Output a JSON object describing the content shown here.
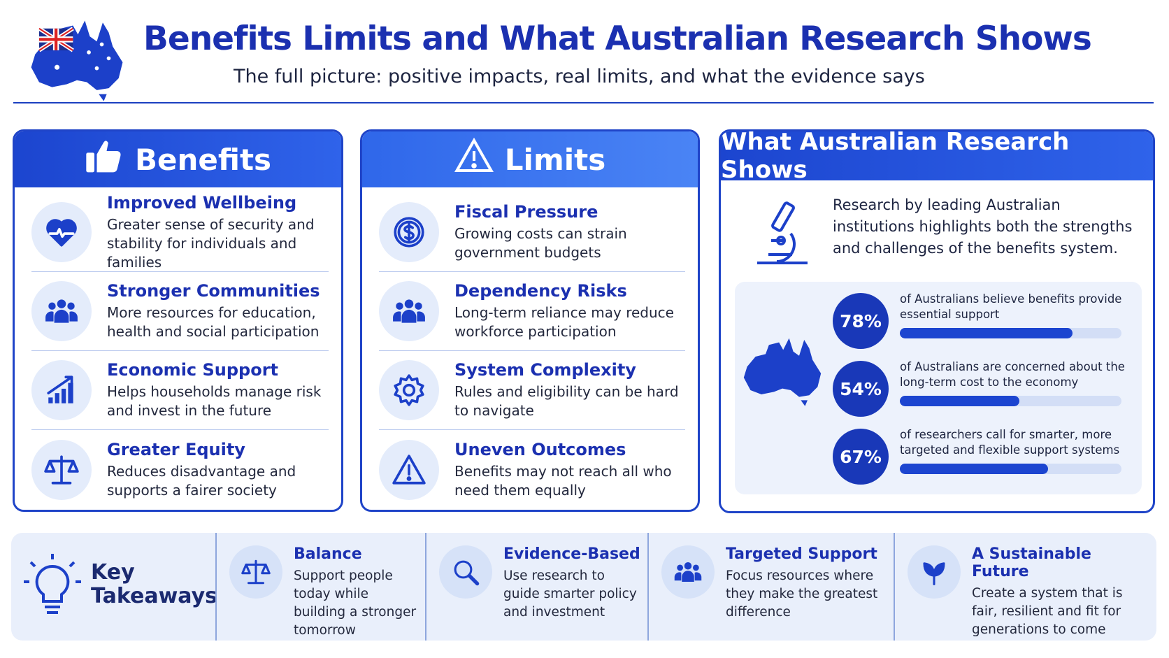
{
  "header": {
    "title": "Benefits Limits and What Australian Research Shows",
    "subtitle": "The full picture: positive impacts, real limits, and what the evidence says"
  },
  "benefits": {
    "title": "Benefits",
    "items": [
      {
        "title": "Improved Wellbeing",
        "text": "Greater sense of security and stability for individuals and families"
      },
      {
        "title": "Stronger Communities",
        "text": "More resources for education, health and social participation"
      },
      {
        "title": "Economic Support",
        "text": "Helps households manage risk and invest in the future"
      },
      {
        "title": "Greater Equity",
        "text": "Reduces disadvantage and supports a fairer society"
      }
    ]
  },
  "limits": {
    "title": "Limits",
    "items": [
      {
        "title": "Fiscal Pressure",
        "text": "Growing costs can strain government budgets"
      },
      {
        "title": "Dependency Risks",
        "text": "Long-term reliance may reduce workforce participation"
      },
      {
        "title": "System Complexity",
        "text": "Rules and eligibility can be hard to navigate"
      },
      {
        "title": "Uneven Outcomes",
        "text": "Benefits may not reach all who need them equally"
      }
    ]
  },
  "research": {
    "title": "What Australian Research Shows",
    "intro": "Research by leading Australian institutions highlights both the strengths and challenges of the benefits system.",
    "stats": [
      {
        "value": 78,
        "value_label": "78%",
        "text": "of Australians believe benefits provide essential support"
      },
      {
        "value": 54,
        "value_label": "54%",
        "text": "of Australians are concerned about the long-term cost to the economy"
      },
      {
        "value": 67,
        "value_label": "67%",
        "text": "of researchers call for smarter, more targeted and flexible support systems"
      }
    ]
  },
  "takeaways": {
    "title": "Key Takeaways",
    "items": [
      {
        "title": "Balance",
        "text": "Support people today while building a stronger tomorrow"
      },
      {
        "title": "Evidence-Based",
        "text": "Use research to guide smarter policy and investment"
      },
      {
        "title": "Targeted Support",
        "text": "Focus resources where they make the greatest difference"
      },
      {
        "title": "A Sustainable Future",
        "text": "Create a system that is fair, resilient and fit for generations to come"
      }
    ]
  }
}
